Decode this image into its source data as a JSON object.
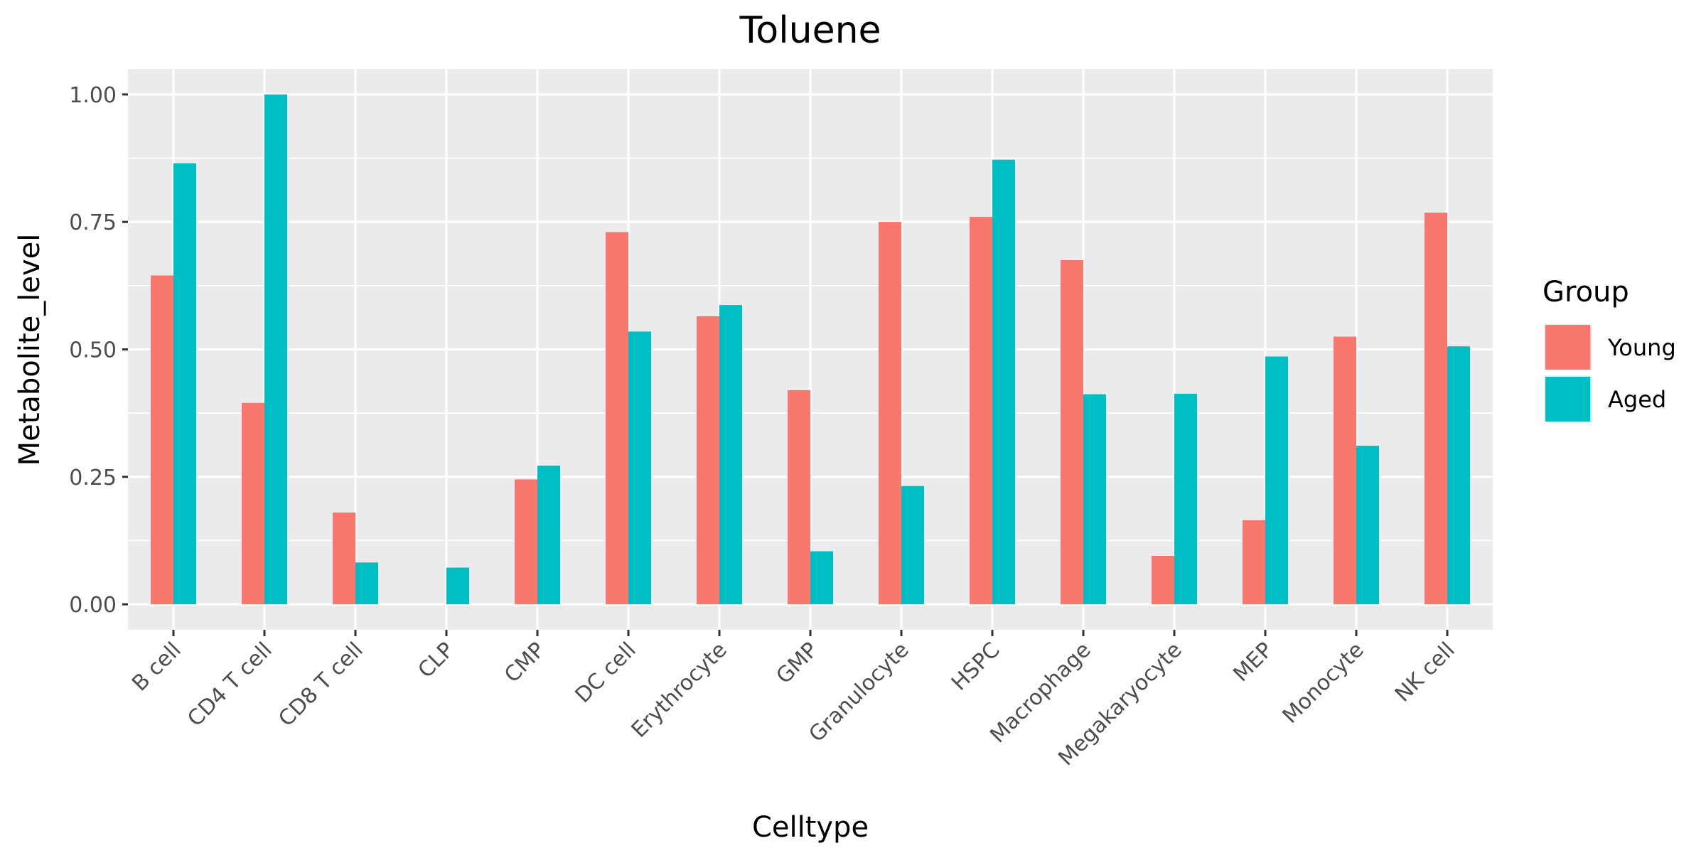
{
  "chart_data": {
    "type": "bar",
    "title": "Toluene",
    "xlabel": "Celltype",
    "ylabel": "Metabolite_level",
    "ylim": [
      -0.05,
      1.05
    ],
    "yticks": [
      0.0,
      0.25,
      0.5,
      0.75,
      1.0
    ],
    "ytick_labels": [
      "0.00",
      "0.25",
      "0.50",
      "0.75",
      "1.00"
    ],
    "categories": [
      "B cell",
      "CD4 T cell",
      "CD8 T cell",
      "CLP",
      "CMP",
      "DC cell",
      "Erythrocyte",
      "GMP",
      "Granulocyte",
      "HSPC",
      "Macrophage",
      "Megakaryocyte",
      "MEP",
      "Monocyte",
      "NK cell"
    ],
    "series": [
      {
        "name": "Young",
        "color": "#F8766D",
        "values": [
          0.645,
          0.395,
          0.18,
          0.0,
          0.245,
          0.73,
          0.565,
          0.42,
          0.75,
          0.76,
          0.675,
          0.095,
          0.165,
          0.525,
          0.768
        ]
      },
      {
        "name": "Aged",
        "color": "#00BFC4",
        "values": [
          0.865,
          1.0,
          0.082,
          0.072,
          0.272,
          0.535,
          0.587,
          0.104,
          0.232,
          0.872,
          0.412,
          0.413,
          0.486,
          0.311,
          0.506
        ]
      }
    ],
    "legend": {
      "title": "Group",
      "position": "right"
    },
    "grid": true,
    "panel_background": "#EBEBEB",
    "grid_color": "#FFFFFF"
  }
}
